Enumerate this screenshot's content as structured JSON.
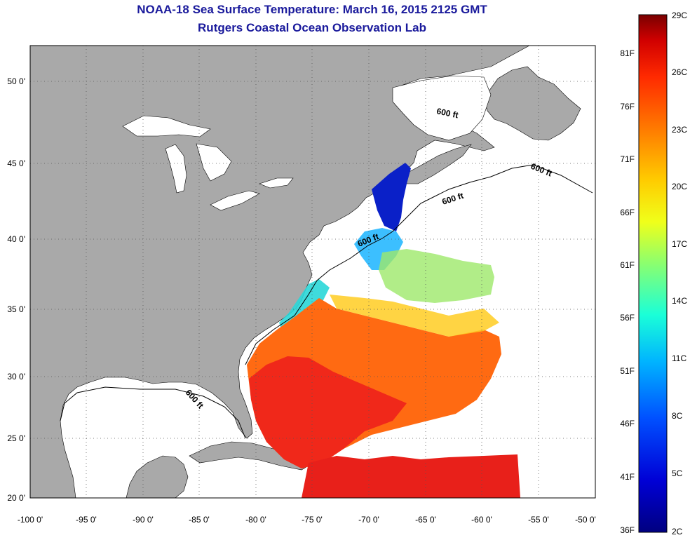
{
  "header": {
    "title": "NOAA-18 Sea Surface Temperature:  March 16, 2015 2125 GMT",
    "subtitle": "Rutgers Coastal Ocean Observation Lab"
  },
  "map": {
    "lon_ticks": [
      "-100 0'",
      "-95 0'",
      "-90 0'",
      "-85 0'",
      "-80 0'",
      "-75 0'",
      "-70 0'",
      "-65 0'",
      "-60 0'",
      "-55 0'",
      "-50 0'"
    ],
    "lat_ticks": [
      "20 0'",
      "25 0'",
      "30 0'",
      "35 0'",
      "40 0'",
      "45 0'",
      "50 0'"
    ],
    "contour_labels": [
      "600 ft",
      "600 ft",
      "600 ft",
      "600 ft",
      "600 ft"
    ],
    "land_color": "#a9a9a9",
    "ocean_color": "#ffffff"
  },
  "colorbar": {
    "celsius_labels": [
      "29C",
      "26C",
      "23C",
      "20C",
      "17C",
      "14C",
      "11C",
      "8C",
      "5C",
      "2C"
    ],
    "fahrenheit_labels": [
      "81F",
      "76F",
      "71F",
      "66F",
      "61F",
      "56F",
      "51F",
      "46F",
      "41F",
      "36F"
    ],
    "colors": [
      "#7a0000",
      "#d10000",
      "#ff2a00",
      "#ff7a00",
      "#ffcc00",
      "#f0ff1a",
      "#8cff6e",
      "#1affd8",
      "#00b4ff",
      "#0050ff",
      "#0000d6",
      "#000080"
    ]
  }
}
